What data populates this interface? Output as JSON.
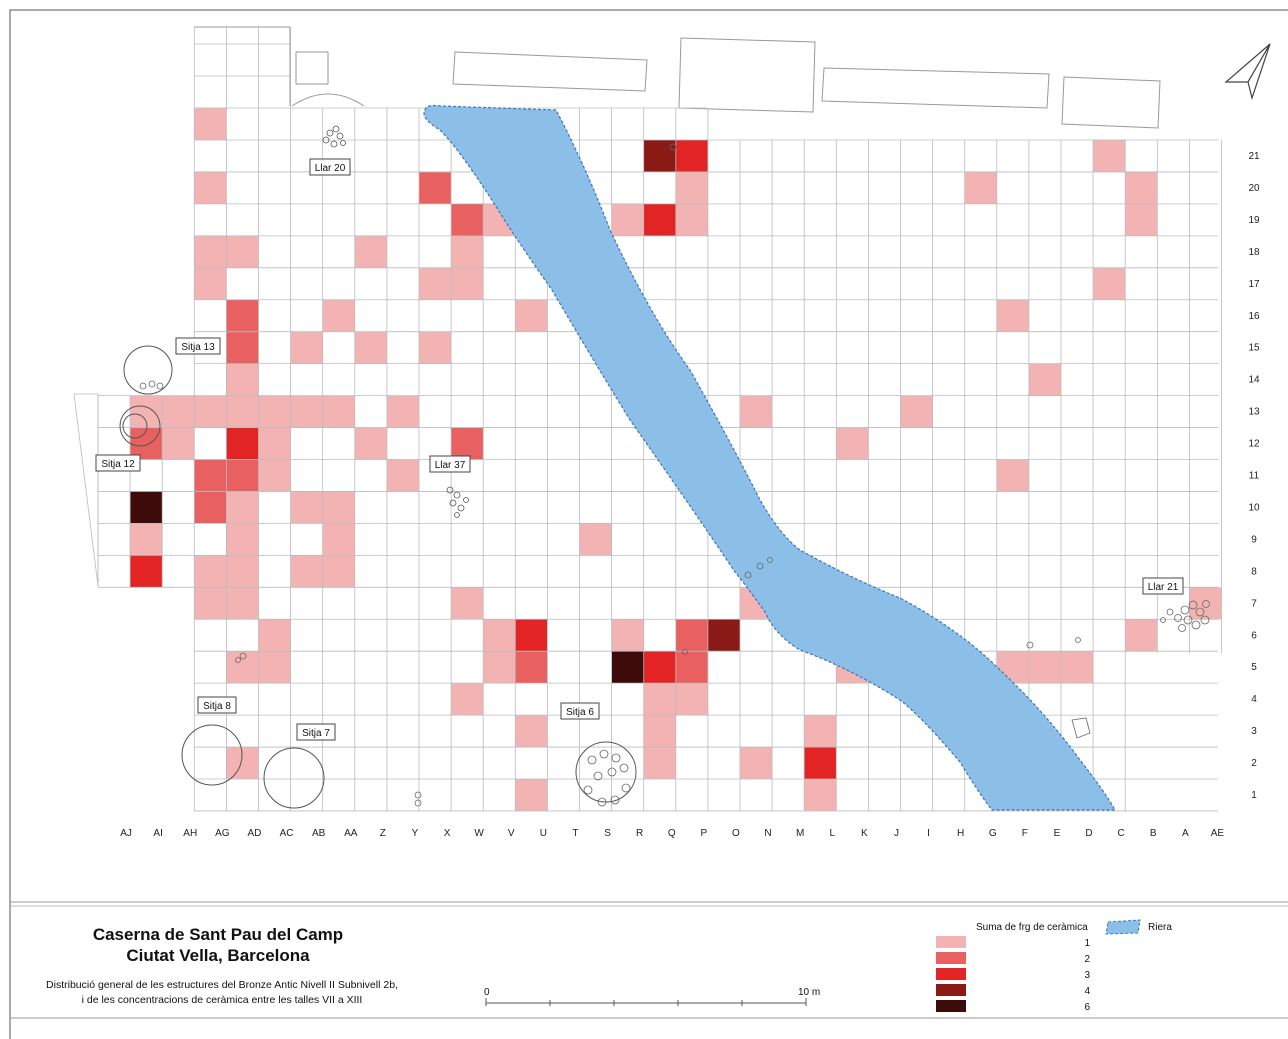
{
  "columns": [
    "AJ",
    "AI",
    "AH",
    "AG",
    "AD",
    "AC",
    "AB",
    "AA",
    "Z",
    "Y",
    "X",
    "W",
    "V",
    "U",
    "T",
    "S",
    "R",
    "Q",
    "P",
    "O",
    "N",
    "M",
    "L",
    "K",
    "J",
    "I",
    "H",
    "G",
    "F",
    "E",
    "D",
    "C",
    "B",
    "A",
    "AE"
  ],
  "rows": [
    "21",
    "20",
    "19",
    "18",
    "17",
    "16",
    "15",
    "14",
    "13",
    "12",
    "11",
    "10",
    "9",
    "8",
    "7",
    "6",
    "5",
    "4",
    "3",
    "2",
    "1"
  ],
  "structure_labels": [
    {
      "id": "llar20",
      "text": "Llar 20"
    },
    {
      "id": "sitja13",
      "text": "Sitja 13"
    },
    {
      "id": "sitja12",
      "text": "Sitja 12"
    },
    {
      "id": "llar37",
      "text": "Llar 37"
    },
    {
      "id": "llar21",
      "text": "Llar 21"
    },
    {
      "id": "sitja8",
      "text": "Sitja 8"
    },
    {
      "id": "sitja7",
      "text": "Sitja 7"
    },
    {
      "id": "sitja6",
      "text": "Sitja 6"
    }
  ],
  "colors": {
    "c1": "#f4b3b3",
    "c2": "#e96060",
    "c3": "#e32424",
    "c4": "#8a1a16",
    "c6": "#3d0c0a",
    "riera": "#8cbfe8",
    "riera_edge": "#3a74c0",
    "grid": "#bbbbbb"
  },
  "cells": [
    {
      "c": "AG",
      "r": "22",
      "v": 1
    },
    {
      "c": "AG",
      "r": "20",
      "v": 1
    },
    {
      "c": "AG",
      "r": "18",
      "v": 1
    },
    {
      "c": "AD",
      "r": "18",
      "v": 1
    },
    {
      "c": "Z",
      "r": "18",
      "v": 1
    },
    {
      "c": "W",
      "r": "18",
      "v": 1
    },
    {
      "c": "AG",
      "r": "17",
      "v": 1
    },
    {
      "c": "X",
      "r": "17",
      "v": 1
    },
    {
      "c": "W",
      "r": "17",
      "v": 1
    },
    {
      "c": "AD",
      "r": "16",
      "v": 2
    },
    {
      "c": "AA",
      "r": "16",
      "v": 1
    },
    {
      "c": "U",
      "r": "16",
      "v": 1
    },
    {
      "c": "AD",
      "r": "15",
      "v": 2
    },
    {
      "c": "AB",
      "r": "15",
      "v": 1
    },
    {
      "c": "Z",
      "r": "15",
      "v": 1
    },
    {
      "c": "X",
      "r": "15",
      "v": 1
    },
    {
      "c": "AD",
      "r": "14",
      "v": 1
    },
    {
      "c": "AI",
      "r": "13",
      "v": 1
    },
    {
      "c": "AH",
      "r": "13",
      "v": 1
    },
    {
      "c": "AG",
      "r": "13",
      "v": 1
    },
    {
      "c": "AD",
      "r": "13",
      "v": 1
    },
    {
      "c": "AC",
      "r": "13",
      "v": 1
    },
    {
      "c": "AB",
      "r": "13",
      "v": 1
    },
    {
      "c": "AA",
      "r": "13",
      "v": 1
    },
    {
      "c": "Y",
      "r": "13",
      "v": 1
    },
    {
      "c": "AI",
      "r": "12",
      "v": 2
    },
    {
      "c": "AH",
      "r": "12",
      "v": 1
    },
    {
      "c": "AD",
      "r": "12",
      "v": 3
    },
    {
      "c": "AC",
      "r": "12",
      "v": 1
    },
    {
      "c": "Z",
      "r": "12",
      "v": 1
    },
    {
      "c": "W",
      "r": "12",
      "v": 2
    },
    {
      "c": "AG",
      "r": "11",
      "v": 2
    },
    {
      "c": "AD",
      "r": "11",
      "v": 2
    },
    {
      "c": "AC",
      "r": "11",
      "v": 1
    },
    {
      "c": "Y",
      "r": "11",
      "v": 1
    },
    {
      "c": "AI",
      "r": "10",
      "v": 6
    },
    {
      "c": "AG",
      "r": "10",
      "v": 2
    },
    {
      "c": "AD",
      "r": "10",
      "v": 1
    },
    {
      "c": "AB",
      "r": "10",
      "v": 1
    },
    {
      "c": "AA",
      "r": "10",
      "v": 1
    },
    {
      "c": "AI",
      "r": "9",
      "v": 1
    },
    {
      "c": "AD",
      "r": "9",
      "v": 1
    },
    {
      "c": "AA",
      "r": "9",
      "v": 1
    },
    {
      "c": "AI",
      "r": "8",
      "v": 3
    },
    {
      "c": "AG",
      "r": "8",
      "v": 1
    },
    {
      "c": "AD",
      "r": "8",
      "v": 1
    },
    {
      "c": "AB",
      "r": "8",
      "v": 1
    },
    {
      "c": "AA",
      "r": "8",
      "v": 1
    },
    {
      "c": "AG",
      "r": "7",
      "v": 1
    },
    {
      "c": "AD",
      "r": "7",
      "v": 1
    },
    {
      "c": "AC",
      "r": "6",
      "v": 1
    },
    {
      "c": "AD",
      "r": "5",
      "v": 1
    },
    {
      "c": "AC",
      "r": "5",
      "v": 1
    },
    {
      "c": "AD",
      "r": "2",
      "v": 1
    },
    {
      "c": "Q",
      "r": "21",
      "v": 4
    },
    {
      "c": "P",
      "r": "21",
      "v": 3
    },
    {
      "c": "X",
      "r": "20",
      "v": 2
    },
    {
      "c": "P",
      "r": "20",
      "v": 1
    },
    {
      "c": "W",
      "r": "19",
      "v": 2
    },
    {
      "c": "V",
      "r": "19",
      "v": 1
    },
    {
      "c": "R",
      "r": "19",
      "v": 1
    },
    {
      "c": "Q",
      "r": "19",
      "v": 3
    },
    {
      "c": "P",
      "r": "19",
      "v": 1
    },
    {
      "c": "S",
      "r": "9",
      "v": 1
    },
    {
      "c": "W",
      "r": "7",
      "v": 1
    },
    {
      "c": "N",
      "r": "7",
      "v": 1
    },
    {
      "c": "V",
      "r": "6",
      "v": 1
    },
    {
      "c": "U",
      "r": "6",
      "v": 3
    },
    {
      "c": "R",
      "r": "6",
      "v": 1
    },
    {
      "c": "P",
      "r": "6",
      "v": 2
    },
    {
      "c": "O",
      "r": "6",
      "v": 4
    },
    {
      "c": "V",
      "r": "5",
      "v": 1
    },
    {
      "c": "U",
      "r": "5",
      "v": 2
    },
    {
      "c": "R",
      "r": "5",
      "v": 6
    },
    {
      "c": "Q",
      "r": "5",
      "v": 3
    },
    {
      "c": "P",
      "r": "5",
      "v": 2
    },
    {
      "c": "W",
      "r": "4",
      "v": 1
    },
    {
      "c": "Q",
      "r": "4",
      "v": 1
    },
    {
      "c": "P",
      "r": "4",
      "v": 1
    },
    {
      "c": "U",
      "r": "3",
      "v": 1
    },
    {
      "c": "Q",
      "r": "3",
      "v": 1
    },
    {
      "c": "L",
      "r": "3",
      "v": 1
    },
    {
      "c": "Q",
      "r": "2",
      "v": 1
    },
    {
      "c": "N",
      "r": "2",
      "v": 1
    },
    {
      "c": "L",
      "r": "2",
      "v": 3
    },
    {
      "c": "U",
      "r": "1",
      "v": 1
    },
    {
      "c": "L",
      "r": "1",
      "v": 1
    },
    {
      "c": "N",
      "r": "13",
      "v": 1
    },
    {
      "c": "I",
      "r": "13",
      "v": 1
    },
    {
      "c": "K",
      "r": "12",
      "v": 1
    },
    {
      "c": "F",
      "r": "11",
      "v": 1
    },
    {
      "c": "F",
      "r": "16",
      "v": 1
    },
    {
      "c": "E",
      "r": "14",
      "v": 1
    },
    {
      "c": "C",
      "r": "21",
      "v": 1
    },
    {
      "c": "G",
      "r": "20",
      "v": 1
    },
    {
      "c": "B",
      "r": "20",
      "v": 1
    },
    {
      "c": "B",
      "r": "19",
      "v": 1
    },
    {
      "c": "C",
      "r": "17",
      "v": 1
    },
    {
      "c": "K",
      "r": "5",
      "v": 1
    },
    {
      "c": "F",
      "r": "5",
      "v": 1
    },
    {
      "c": "E",
      "r": "5",
      "v": 1
    },
    {
      "c": "D",
      "r": "5",
      "v": 1
    },
    {
      "c": "B",
      "r": "6",
      "v": 1
    },
    {
      "c": "AE",
      "r": "7",
      "v": 1
    }
  ],
  "title": {
    "line1": "Caserna de Sant Pau del Camp",
    "line2": "Ciutat Vella, Barcelona",
    "desc1": "Distribució general de les estructures del Bronze Antic Nivell II Subnivell 2b,",
    "desc2": "i de les concentracions de ceràmica entre les talles VII a XIII"
  },
  "scale": {
    "start": "0",
    "end": "10 m"
  },
  "legend": {
    "title": "Suma de frg de ceràmica",
    "items": [
      {
        "label": "1",
        "color": "#f4b3b3"
      },
      {
        "label": "2",
        "color": "#e96060"
      },
      {
        "label": "3",
        "color": "#e32424"
      },
      {
        "label": "4",
        "color": "#8a1a16"
      },
      {
        "label": "6",
        "color": "#3d0c0a"
      }
    ],
    "riera_label": "Riera"
  }
}
